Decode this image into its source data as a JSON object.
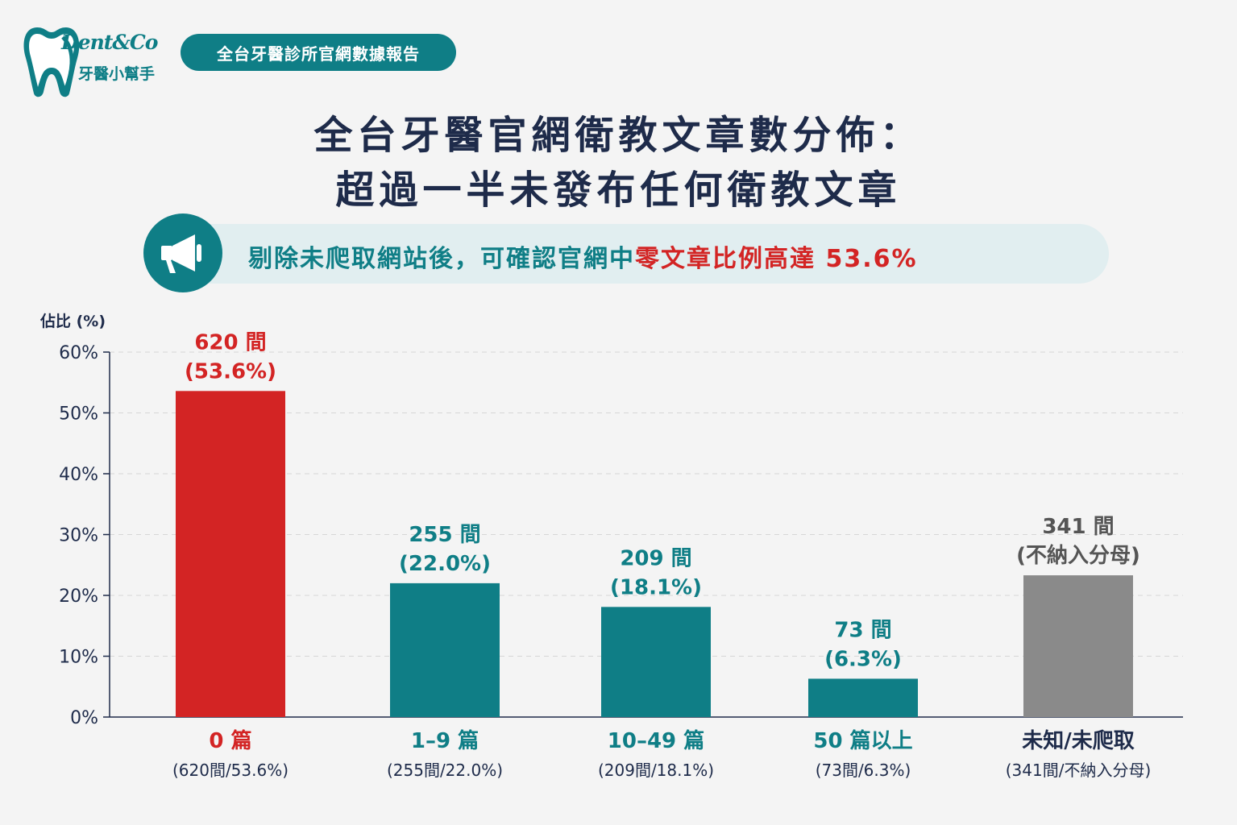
{
  "header": {
    "logo_en": "Dent&Co",
    "logo_zh": "牙醫小幫手",
    "badge": "全台牙醫診所官網數據報告",
    "title_line1": "全台牙醫官網衛教文章數分佈：",
    "title_line2": "超過一半未發布任何衛教文章",
    "banner_prefix": "剔除未爬取網站後，可確認官網中",
    "banner_highlight": "零文章比例高達 53.6%"
  },
  "colors": {
    "teal": "#0f7e86",
    "red": "#d32424",
    "gray": "#8a8a8a",
    "navy": "#1e2b4a"
  },
  "chart_data": {
    "type": "bar",
    "ylabel": "佔比 (%)",
    "ylim": [
      0,
      60
    ],
    "yticks": [
      "0%",
      "10%",
      "20%",
      "30%",
      "40%",
      "50%",
      "60%"
    ],
    "grid": true,
    "categories": [
      "0 篇",
      "1–9 篇",
      "10–49 篇",
      "50 篇以上",
      "未知/未爬取"
    ],
    "sublabels": [
      "(620間/53.6%)",
      "(255間/22.0%)",
      "(209間/18.1%)",
      "(73間/6.3%)",
      "(341間/不納入分母)"
    ],
    "values": [
      53.6,
      22.0,
      18.1,
      6.3,
      23.3
    ],
    "counts": [
      "620 間",
      "255 間",
      "209 間",
      "73 間",
      "341 間"
    ],
    "value_labels": [
      "(53.6%)",
      "(22.0%)",
      "(18.1%)",
      "(6.3%)",
      "(不納入分母)"
    ],
    "bar_colors": [
      "#d32424",
      "#0f7e86",
      "#0f7e86",
      "#0f7e86",
      "#8a8a8a"
    ]
  }
}
